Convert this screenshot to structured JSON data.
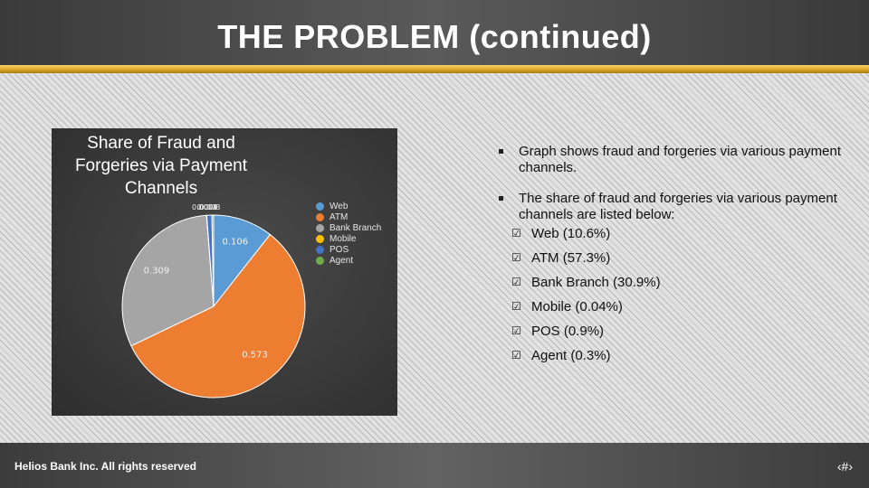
{
  "slide": {
    "title": "THE PROBLEM (continued)",
    "footer": "Helios Bank Inc. All rights reserved",
    "page_number": "‹#›"
  },
  "bullets": [
    {
      "text": "Graph shows fraud and forgeries via various payment channels."
    },
    {
      "text": "The share of fraud and forgeries via various payment channels are listed below:"
    }
  ],
  "sub_bullets": [
    {
      "text": "Web (10.6%)"
    },
    {
      "text": "ATM (57.3%)"
    },
    {
      "text": "Bank Branch (30.9%)"
    },
    {
      "text": "Mobile (0.04%)"
    },
    {
      "text": "POS (0.9%)"
    },
    {
      "text": "Agent (0.3%)"
    }
  ],
  "check_glyph": "☑",
  "chart_data": {
    "type": "pie",
    "title": "Share of Fraud and Forgeries via Payment Channels",
    "categories": [
      "Web",
      "ATM",
      "Bank Branch",
      "Mobile",
      "POS",
      "Agent"
    ],
    "values": [
      0.106,
      0.573,
      0.309,
      0.0004,
      0.009,
      0.003
    ],
    "colors": [
      "#5b9bd5",
      "#ed7d31",
      "#a5a5a5",
      "#ffc000",
      "#4472c4",
      "#70ad47"
    ],
    "data_labels": [
      "0.106",
      "0.573",
      "0.309",
      "0.0004",
      "0.009",
      "0.003"
    ],
    "legend_position": "right"
  }
}
